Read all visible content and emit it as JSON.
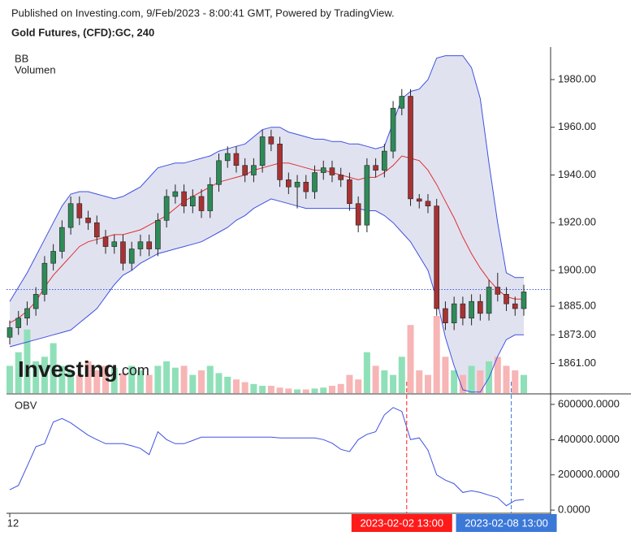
{
  "header": "Published on Investing.com, 9/Feb/2023 - 8:00:41 GMT, Powered by TradingView.",
  "logo": {
    "name": "Investing",
    "suffix": ".com"
  },
  "chart_data": [
    {
      "type": "candlestick",
      "title": "Gold Futures, (CFD):GC, 240",
      "categories": [
        "12",
        null,
        null,
        null,
        null,
        null,
        null,
        null,
        null,
        null,
        null,
        null,
        null,
        null,
        null,
        null,
        null,
        null,
        null,
        null,
        null,
        null,
        null,
        null,
        null,
        null,
        null,
        null,
        null,
        null,
        null,
        null,
        null,
        null,
        null,
        null,
        null,
        null,
        null,
        null,
        null,
        null,
        null,
        null,
        null,
        "2023-02-02 13:00",
        null,
        null,
        null,
        null,
        null,
        null,
        null,
        null,
        null,
        null,
        null,
        "2023-02-08 13:00",
        null,
        null
      ],
      "open": [
        1872,
        1876,
        1880,
        1884,
        1890,
        1903,
        1908,
        1918,
        1928,
        1922,
        1920,
        1914,
        1910,
        1912,
        1903,
        1909,
        1912,
        1909,
        1921,
        1931,
        1933,
        1927,
        1931,
        1925,
        1936,
        1946,
        1949,
        1944,
        1940,
        1944,
        1956,
        1953,
        1938,
        1935,
        1937,
        1933,
        1941,
        1943,
        1940,
        1938,
        1928,
        1919,
        1944,
        1942,
        1950,
        1968,
        1973,
        1930,
        1929,
        1927,
        1884,
        1878,
        1886,
        1880,
        1887,
        1882,
        1893,
        1890,
        1886,
        1884
      ],
      "high": [
        1879,
        1883,
        1887,
        1893,
        1906,
        1911,
        1921,
        1931,
        1931,
        1925,
        1923,
        1917,
        1915,
        1915,
        1912,
        1915,
        1915,
        1924,
        1934,
        1936,
        1936,
        1934,
        1934,
        1939,
        1949,
        1952,
        1952,
        1947,
        1947,
        1959,
        1959,
        1956,
        1941,
        1940,
        1940,
        1944,
        1946,
        1946,
        1943,
        1941,
        1931,
        1947,
        1947,
        1953,
        1971,
        1976,
        1976,
        1932,
        1932,
        1930,
        1887,
        1889,
        1889,
        1890,
        1890,
        1896,
        1899,
        1893,
        1889,
        1894
      ],
      "low": [
        1869,
        1873,
        1877,
        1881,
        1887,
        1900,
        1905,
        1915,
        1919,
        1917,
        1911,
        1907,
        1907,
        1900,
        1900,
        1906,
        1906,
        1906,
        1918,
        1928,
        1924,
        1924,
        1922,
        1922,
        1933,
        1943,
        1941,
        1937,
        1937,
        1941,
        1950,
        1935,
        1932,
        1926,
        1930,
        1930,
        1938,
        1937,
        1935,
        1925,
        1916,
        1916,
        1939,
        1939,
        1947,
        1965,
        1927,
        1926,
        1924,
        1881,
        1875,
        1875,
        1877,
        1877,
        1879,
        1879,
        1887,
        1883,
        1881,
        1881
      ],
      "close": [
        1876,
        1880,
        1884,
        1890,
        1903,
        1908,
        1918,
        1928,
        1922,
        1920,
        1914,
        1910,
        1912,
        1903,
        1909,
        1912,
        1909,
        1921,
        1931,
        1933,
        1927,
        1931,
        1925,
        1936,
        1946,
        1949,
        1944,
        1940,
        1944,
        1956,
        1953,
        1938,
        1935,
        1937,
        1933,
        1941,
        1943,
        1940,
        1938,
        1928,
        1919,
        1944,
        1942,
        1950,
        1968,
        1973,
        1930,
        1929,
        1927,
        1884,
        1878,
        1886,
        1880,
        1887,
        1882,
        1893,
        1890,
        1886,
        1884,
        1891
      ],
      "up_color": "#2e8b57",
      "down_color": "#a83232",
      "bb": {
        "name": "BB",
        "line_color": "#3f51e0",
        "basis_color": "#e03030",
        "fill": "#e1e2f0",
        "upper": [
          1887,
          1893,
          1899,
          1906,
          1913,
          1920,
          1927,
          1932,
          1933,
          1933,
          1932,
          1931,
          1930,
          1931,
          1933,
          1935,
          1939,
          1943,
          1944,
          1945,
          1945,
          1946,
          1947,
          1948,
          1950,
          1951,
          1952,
          1953,
          1956,
          1959,
          1960,
          1960,
          1958,
          1957,
          1956,
          1955,
          1955,
          1954,
          1954,
          1953,
          1953,
          1952,
          1951,
          1952,
          1962,
          1972,
          1975,
          1976,
          1980,
          1989,
          1990,
          1990,
          1990,
          1985,
          1972,
          1945,
          1920,
          1899,
          1897,
          1897
        ],
        "basis": [
          1878,
          1880,
          1883,
          1887,
          1893,
          1898,
          1902,
          1906,
          1910,
          1912,
          1913,
          1914,
          1915,
          1915,
          1916,
          1917,
          1919,
          1921,
          1923,
          1926,
          1929,
          1931,
          1933,
          1935,
          1937,
          1938,
          1939,
          1940,
          1942,
          1943,
          1944,
          1945,
          1945,
          1944,
          1943,
          1942,
          1942,
          1941,
          1940,
          1939,
          1938,
          1939,
          1939,
          1941,
          1944,
          1948,
          1947,
          1946,
          1942,
          1936,
          1929,
          1922,
          1914,
          1907,
          1901,
          1896,
          1892,
          1889,
          1888,
          1888
        ],
        "lower": [
          1868,
          1869,
          1870,
          1871,
          1872,
          1873,
          1874,
          1875,
          1878,
          1881,
          1884,
          1889,
          1894,
          1898,
          1900,
          1903,
          1905,
          1907,
          1908,
          1909,
          1910,
          1911,
          1912,
          1914,
          1916,
          1918,
          1921,
          1923,
          1926,
          1928,
          1930,
          1929,
          1928,
          1927,
          1926,
          1926,
          1926,
          1926,
          1926,
          1926,
          1926,
          1925,
          1925,
          1923,
          1920,
          1916,
          1912,
          1906,
          1900,
          1888,
          1872,
          1860,
          1850,
          1849,
          1849,
          1855,
          1864,
          1871,
          1873,
          1873
        ]
      },
      "volume": {
        "name": "Volumen",
        "up_color": "#8fe0b8",
        "down_color": "#f7b5b5",
        "values": [
          30,
          45,
          70,
          35,
          40,
          55,
          30,
          25,
          20,
          35,
          25,
          30,
          28,
          22,
          30,
          25,
          20,
          30,
          35,
          28,
          30,
          20,
          25,
          30,
          22,
          18,
          15,
          12,
          10,
          8,
          8,
          6,
          5,
          4,
          4,
          5,
          6,
          8,
          10,
          20,
          15,
          45,
          30,
          25,
          20,
          40,
          75,
          25,
          20,
          85,
          40,
          25,
          20,
          30,
          25,
          35,
          40,
          30,
          25,
          20
        ]
      },
      "last_price": 1892,
      "last_price_color": "#3b5bdb",
      "crosshairs": [
        {
          "category": "2023-02-02 13:00",
          "color": "#ff1a1a"
        },
        {
          "category": "2023-02-08 13:00",
          "color": "#3b78d8"
        }
      ],
      "ylim": [
        1848.6,
        1993.6
      ],
      "yticks": [
        {
          "value": 1980,
          "label": "1980.00"
        },
        {
          "value": 1960,
          "label": "1960.00"
        },
        {
          "value": 1940,
          "label": "1940.00"
        },
        {
          "value": 1920,
          "label": "1920.00"
        },
        {
          "value": 1900,
          "label": "1900.00"
        },
        {
          "value": 1885,
          "label": "1885.00"
        },
        {
          "value": 1873,
          "label": "1873.00"
        },
        {
          "value": 1861,
          "label": "1861.00"
        }
      ]
    },
    {
      "type": "line",
      "title": "OBV",
      "color": "#4052e0",
      "values": [
        115000,
        140000,
        250000,
        360000,
        377000,
        500000,
        520000,
        495000,
        460000,
        425000,
        400000,
        377000,
        377000,
        377000,
        365000,
        350000,
        315000,
        445000,
        400000,
        377000,
        377000,
        395000,
        414000,
        414000,
        414000,
        414000,
        414000,
        414000,
        414000,
        414000,
        414000,
        410000,
        410000,
        410000,
        410000,
        410000,
        400000,
        380000,
        345000,
        332000,
        400000,
        430000,
        445000,
        540000,
        582000,
        560000,
        400000,
        410000,
        340000,
        200000,
        170000,
        150000,
        100000,
        110000,
        100000,
        85000,
        70000,
        25000,
        55000,
        60000
      ],
      "ylim": [
        -18000,
        655000
      ],
      "yticks": [
        {
          "value": 600000,
          "label": "600000.0000"
        },
        {
          "value": 400000,
          "label": "400000.0000"
        },
        {
          "value": 200000,
          "label": "200000.0000"
        },
        {
          "value": 0,
          "label": "0.0000"
        }
      ]
    }
  ]
}
